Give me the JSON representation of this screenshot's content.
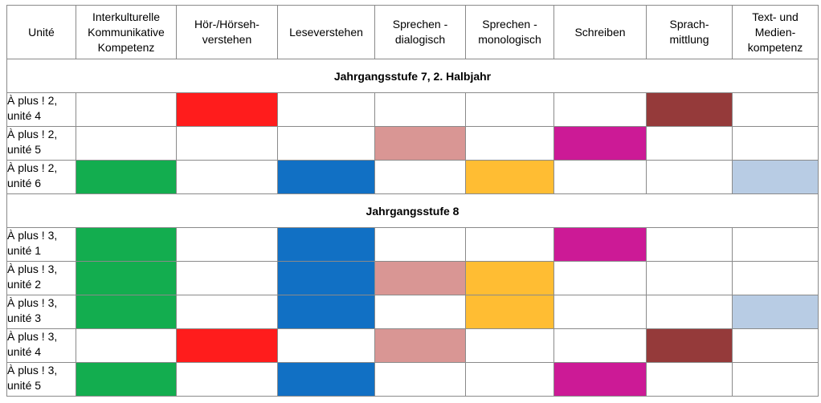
{
  "table": {
    "headers": [
      "Unité",
      "Interkulturelle\nKommunikative\nKompetenz",
      "Hör-/Hörseh-\nverstehen",
      "Leseverstehen",
      "Sprechen -\ndialogisch",
      "Sprechen -\nmonologisch",
      "Schreiben",
      "Sprach-\nmittlung",
      "Text- und\nMedien-\nkompetenz"
    ],
    "colors": {
      "red": "#ff1c1c",
      "brown": "#953a3a",
      "pink": "#d99694",
      "magenta": "#cc1a96",
      "green": "#13ad4f",
      "blue": "#1170c4",
      "orange": "#ffbd33",
      "lightblue": "#b8cce4"
    },
    "sections": [
      {
        "title": "Jahrgangsstufe 7, 2. Halbjahr",
        "rows": [
          {
            "unit": "À plus ! 2,\nunité 4",
            "cells": [
              "",
              "red",
              "",
              "",
              "",
              "",
              "brown",
              ""
            ]
          },
          {
            "unit": "À plus ! 2,\nunité 5",
            "cells": [
              "",
              "",
              "",
              "pink",
              "",
              "magenta",
              "",
              ""
            ]
          },
          {
            "unit": "À plus ! 2,\nunité 6",
            "cells": [
              "green",
              "",
              "blue",
              "",
              "orange",
              "",
              "",
              "lightblue"
            ]
          }
        ]
      },
      {
        "title": "Jahrgangsstufe 8",
        "rows": [
          {
            "unit": "À plus ! 3,\nunité 1",
            "cells": [
              "green",
              "",
              "blue",
              "",
              "",
              "magenta",
              "",
              ""
            ]
          },
          {
            "unit": "À plus ! 3,\nunité 2",
            "cells": [
              "green",
              "",
              "blue",
              "pink",
              "orange",
              "",
              "",
              ""
            ]
          },
          {
            "unit": "À plus ! 3,\nunité 3",
            "cells": [
              "green",
              "",
              "blue",
              "",
              "orange",
              "",
              "",
              "lightblue"
            ]
          },
          {
            "unit": "À plus ! 3,\nunité 4",
            "cells": [
              "",
              "red",
              "",
              "pink",
              "",
              "",
              "brown",
              ""
            ]
          },
          {
            "unit": "À plus ! 3,\nunité 5",
            "cells": [
              "green",
              "",
              "blue",
              "",
              "",
              "magenta",
              "",
              ""
            ]
          }
        ]
      }
    ]
  }
}
